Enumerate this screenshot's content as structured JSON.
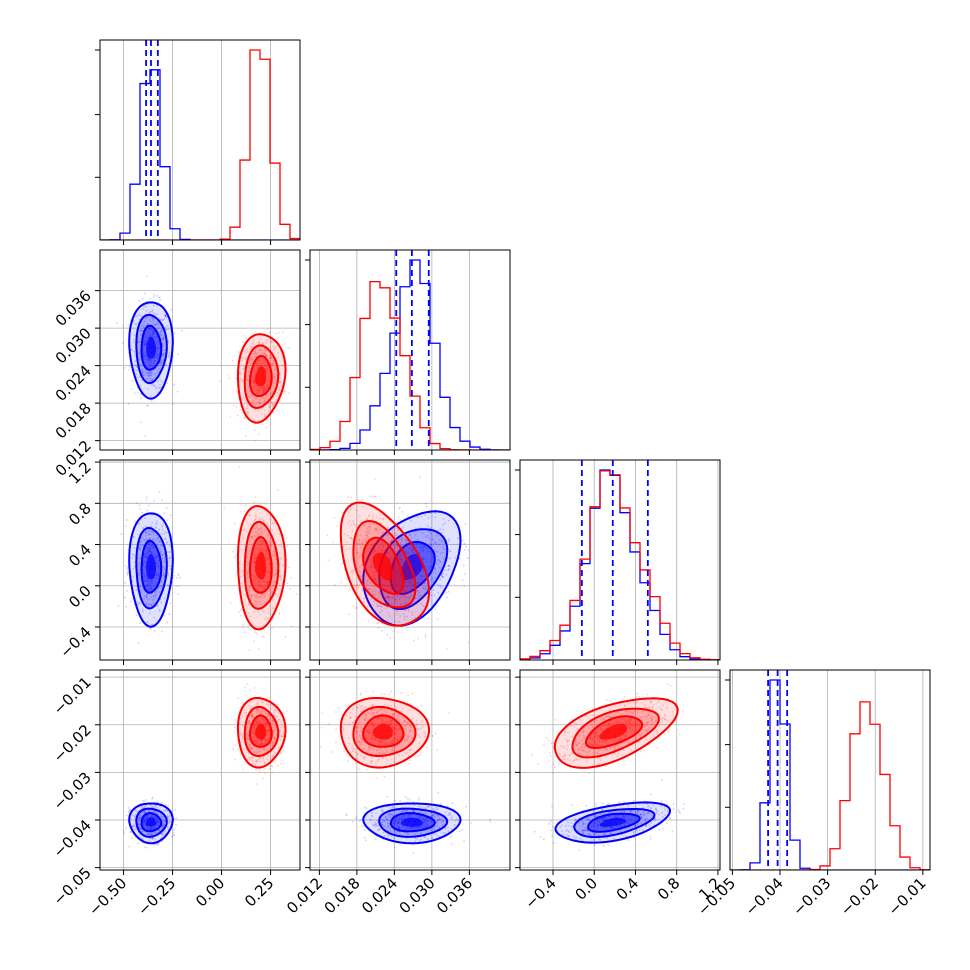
{
  "chart_data": {
    "type": "corner",
    "grid": true,
    "dims": [
      {
        "range": [
          -0.62,
          0.4
        ],
        "ticks": [
          -0.5,
          -0.25,
          0.0,
          0.25
        ],
        "labels": [
          "−0.50",
          "−0.25",
          "0.00",
          "0.25"
        ]
      },
      {
        "range": [
          0.0105,
          0.0425
        ],
        "ticks": [
          0.012,
          0.018,
          0.024,
          0.03,
          0.036
        ],
        "labels": [
          "0.012",
          "0.018",
          "0.024",
          "0.030",
          "0.036"
        ]
      },
      {
        "range": [
          -0.72,
          1.22
        ],
        "ticks": [
          -0.4,
          0.0,
          0.4,
          0.8,
          1.2
        ],
        "labels": [
          "−0.4",
          "0.0",
          "0.4",
          "0.8",
          "1.2"
        ]
      },
      {
        "range": [
          -0.0505,
          -0.0085
        ],
        "ticks": [
          -0.05,
          -0.04,
          -0.03,
          -0.02,
          -0.01
        ],
        "labels": [
          "−0.05",
          "−0.04",
          "−0.03",
          "−0.02",
          "−0.01"
        ]
      }
    ],
    "series": [
      {
        "color": "#0000ff",
        "mean": [
          -0.36,
          0.0268,
          0.18,
          -0.0405
        ],
        "sd": [
          0.05,
          0.0035,
          0.25,
          0.0019
        ],
        "quantiles": [
          [
            -0.385,
            -0.36,
            -0.325
          ],
          [
            0.0243,
            0.0268,
            0.0295
          ],
          [
            -0.12,
            0.18,
            0.52
          ],
          [
            -0.0425,
            -0.0405,
            -0.0385
          ]
        ]
      },
      {
        "color": "#ff0000",
        "mean": [
          0.2,
          0.0222,
          0.19,
          -0.0215
        ],
        "sd": [
          0.055,
          0.0032,
          0.27,
          0.0033
        ],
        "quantiles": []
      }
    ],
    "correlations": [
      {
        "pair": [
          0,
          1
        ],
        "r": [
          0.0,
          0.1
        ]
      },
      {
        "pair": [
          0,
          2
        ],
        "r": [
          0.0,
          0.0
        ]
      },
      {
        "pair": [
          1,
          2
        ],
        "r": [
          0.35,
          -0.45
        ]
      },
      {
        "pair": [
          0,
          3
        ],
        "r": [
          0.0,
          0.0
        ]
      },
      {
        "pair": [
          1,
          3
        ],
        "r": [
          0.0,
          0.0
        ]
      },
      {
        "pair": [
          2,
          3
        ],
        "r": [
          0.45,
          0.55
        ]
      }
    ]
  }
}
